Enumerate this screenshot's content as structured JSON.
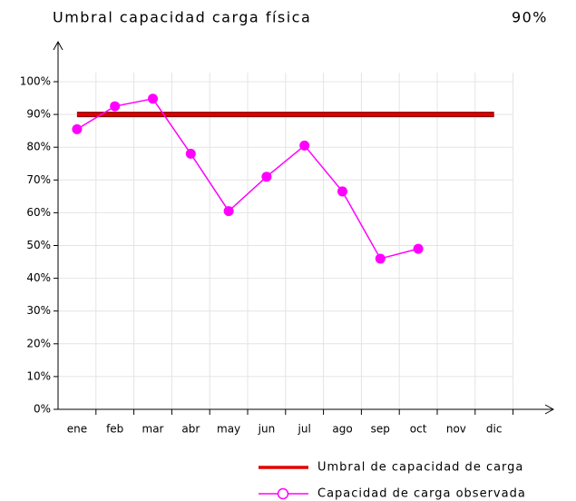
{
  "chart_data": {
    "type": "line",
    "title": "Umbral capacidad carga física",
    "annotation": "90%",
    "categories": [
      "ene",
      "feb",
      "mar",
      "abr",
      "may",
      "jun",
      "jul",
      "ago",
      "sep",
      "oct",
      "nov",
      "dic"
    ],
    "series": [
      {
        "name": "Umbral de capacidad de carga",
        "color": "#e00000",
        "markers": false,
        "values": [
          90,
          90,
          90,
          90,
          90,
          90,
          90,
          90,
          90,
          90,
          90,
          90
        ]
      },
      {
        "name": "Capacidad de carga observada",
        "color": "#ff00ff",
        "markers": true,
        "values": [
          85.5,
          92.5,
          94.8,
          78,
          60.5,
          71,
          80.5,
          66.5,
          46,
          49,
          null,
          null
        ]
      }
    ],
    "ylim": [
      0,
      100
    ],
    "yticks": [
      {
        "value": 0,
        "label": "0%"
      },
      {
        "value": 10,
        "label": "10%"
      },
      {
        "value": 20,
        "label": "20%"
      },
      {
        "value": 30,
        "label": "30%"
      },
      {
        "value": 40,
        "label": "40%"
      },
      {
        "value": 50,
        "label": "50%"
      },
      {
        "value": 60,
        "label": "60%"
      },
      {
        "value": 70,
        "label": "70%"
      },
      {
        "value": 80,
        "label": "80%"
      },
      {
        "value": 90,
        "label": "90%"
      },
      {
        "value": 100,
        "label": "100%"
      }
    ],
    "grid": true,
    "legend": "bottom-right"
  }
}
